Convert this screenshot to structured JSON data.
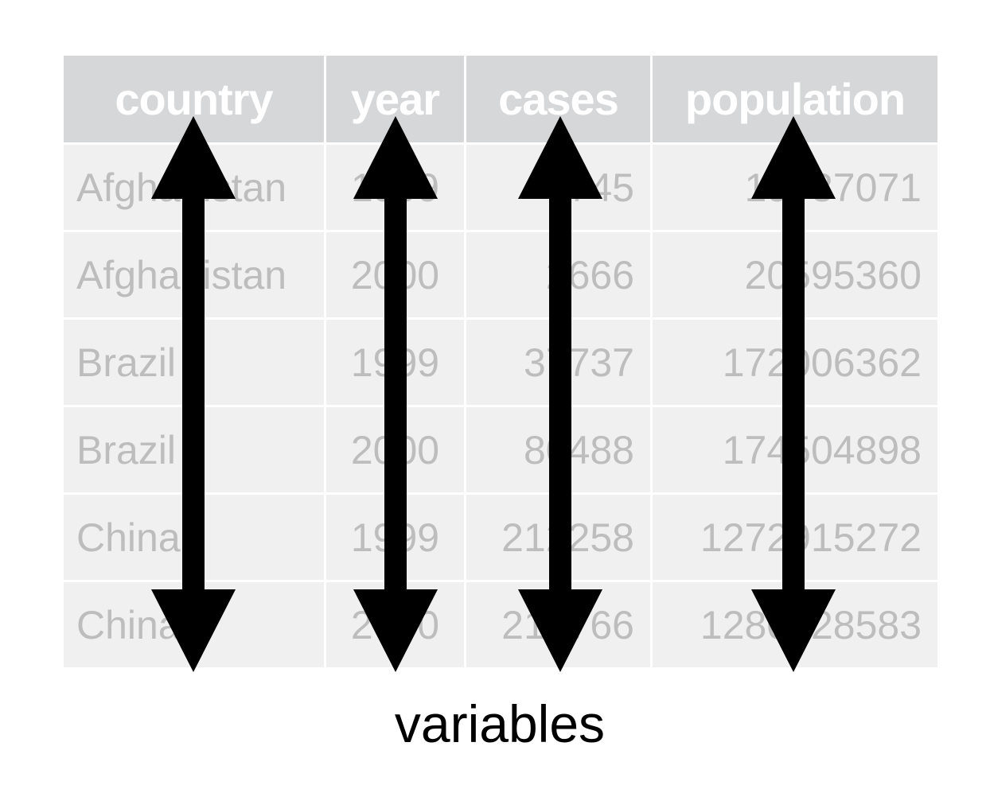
{
  "table": {
    "headers": [
      "country",
      "year",
      "cases",
      "population"
    ],
    "rows": [
      [
        "Afghanistan",
        "1999",
        "745",
        "19987071"
      ],
      [
        "Afghanistan",
        "2000",
        "2666",
        "20595360"
      ],
      [
        "Brazil",
        "1999",
        "37737",
        "172006362"
      ],
      [
        "Brazil",
        "2000",
        "80488",
        "174504898"
      ],
      [
        "China",
        "1999",
        "212258",
        "1272915272"
      ],
      [
        "China",
        "2000",
        "213766",
        "1280428583"
      ]
    ]
  },
  "caption": "variables",
  "colors": {
    "header_bg": "#d6d7d8",
    "cell_bg": "#eff0ef",
    "cell_text": "#bdbdbd",
    "arrow": "#000000"
  },
  "icons": [
    "double-arrow-vertical-icon"
  ]
}
